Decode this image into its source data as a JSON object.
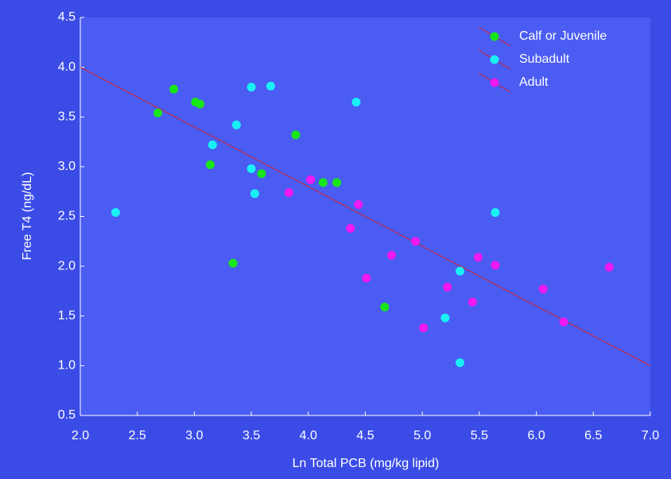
{
  "chart_data": {
    "type": "scatter",
    "x_label": "Ln Total PCB (mg/kg lipid)",
    "y_label": "Free T4 (ng/dL)",
    "xlim": [
      2.0,
      7.0
    ],
    "ylim": [
      0.5,
      4.5
    ],
    "xticks": [
      {
        "value": 2.0,
        "label": "2.0"
      },
      {
        "value": 2.5,
        "label": "2.5"
      },
      {
        "value": 3.0,
        "label": "3.0"
      },
      {
        "value": 3.5,
        "label": "3.5"
      },
      {
        "value": 4.0,
        "label": "4.0"
      },
      {
        "value": 4.5,
        "label": "4.5"
      },
      {
        "value": 5.0,
        "label": "5.0"
      },
      {
        "value": 5.5,
        "label": "5.5"
      },
      {
        "value": 6.0,
        "label": "6.0"
      },
      {
        "value": 6.5,
        "label": "6.5"
      },
      {
        "value": 7.0,
        "label": "7.0"
      }
    ],
    "yticks": [
      {
        "value": 0.5,
        "label": "0.5"
      },
      {
        "value": 1.0,
        "label": "1.0"
      },
      {
        "value": 1.5,
        "label": "1.5"
      },
      {
        "value": 2.0,
        "label": "2.0"
      },
      {
        "value": 2.5,
        "label": "2.5"
      },
      {
        "value": 3.0,
        "label": "3.0"
      },
      {
        "value": 3.5,
        "label": "3.5"
      },
      {
        "value": 4.0,
        "label": "4.0"
      },
      {
        "value": 4.5,
        "label": "4.5"
      }
    ],
    "legend_position": "upper right",
    "trendline": {
      "color": "#d4202a",
      "x": [
        2.0,
        7.0
      ],
      "values": [
        4.0,
        1.0
      ]
    },
    "series": [
      {
        "name": "Calf or Juvenile",
        "color": "#19e619",
        "x": [
          2.68,
          2.82,
          3.01,
          3.05,
          3.14,
          3.34,
          3.59,
          3.89,
          4.13,
          4.25,
          4.67
        ],
        "values": [
          3.54,
          3.78,
          3.65,
          3.63,
          3.02,
          2.03,
          2.93,
          3.32,
          2.84,
          2.84,
          1.59
        ]
      },
      {
        "name": "Subadult",
        "color": "#19f0f5",
        "x": [
          2.31,
          3.16,
          3.37,
          3.5,
          3.67,
          3.5,
          3.53,
          4.42,
          5.33,
          5.2,
          5.33,
          5.64
        ],
        "values": [
          2.54,
          3.22,
          3.42,
          3.8,
          3.81,
          2.98,
          2.73,
          3.65,
          1.95,
          1.48,
          1.03,
          2.54
        ]
      },
      {
        "name": "Adult",
        "color": "#f019f0",
        "x": [
          3.83,
          4.02,
          4.44,
          4.37,
          4.51,
          4.73,
          4.94,
          5.01,
          5.22,
          5.44,
          5.49,
          5.64,
          6.06,
          6.24,
          6.64
        ],
        "values": [
          2.74,
          2.87,
          2.62,
          2.38,
          1.88,
          2.11,
          2.25,
          1.38,
          1.79,
          1.64,
          2.09,
          2.01,
          1.77,
          1.44,
          1.99
        ]
      }
    ]
  }
}
